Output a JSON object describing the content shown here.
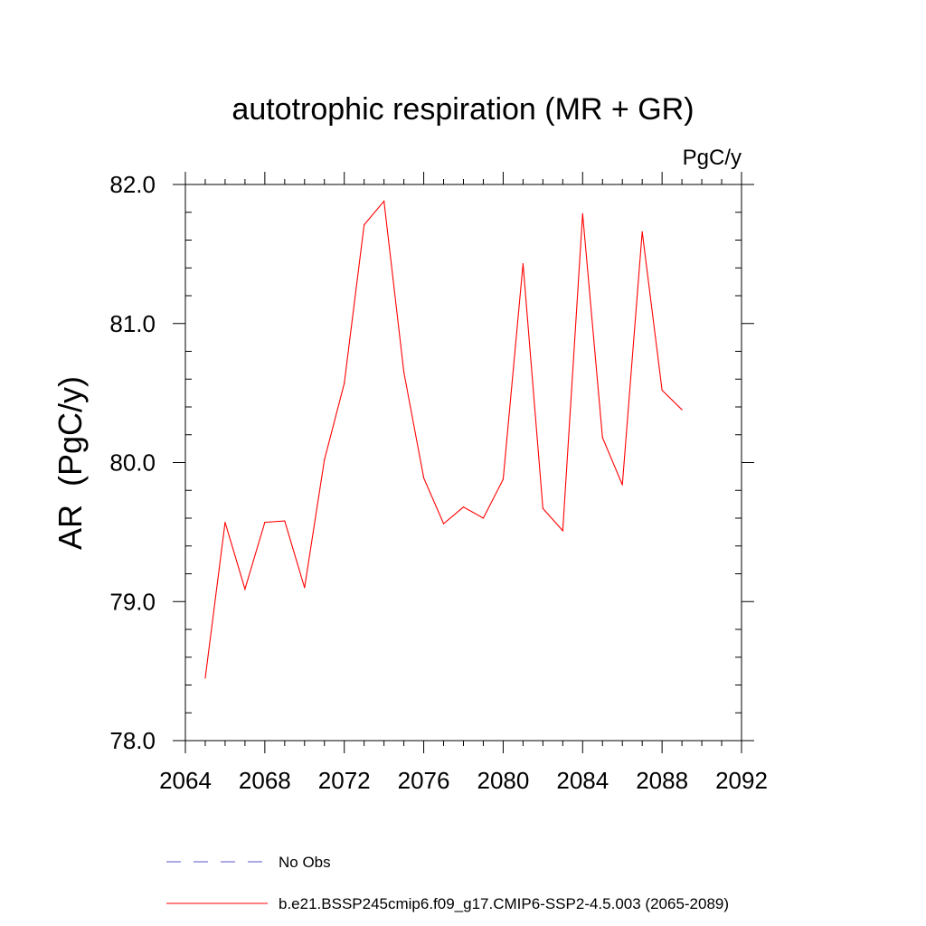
{
  "chart_data": {
    "type": "line",
    "title": "autotrophic respiration (MR + GR)",
    "units": "PgC/y",
    "ylabel": "AR  (PgC/y)",
    "xlabel": "",
    "xlim": [
      2064,
      2092
    ],
    "ylim": [
      78.0,
      82.0
    ],
    "x_ticks": [
      2064,
      2068,
      2072,
      2076,
      2080,
      2084,
      2088,
      2092
    ],
    "x_tick_labels": [
      "2064",
      "2068",
      "2072",
      "2076",
      "2080",
      "2084",
      "2088",
      "2092"
    ],
    "y_ticks": [
      78.0,
      79.0,
      80.0,
      81.0,
      82.0
    ],
    "y_tick_labels": [
      "78.0",
      "79.0",
      "80.0",
      "81.0",
      "82.0"
    ],
    "grid": false,
    "legend_position": "bottom",
    "series": [
      {
        "name": "b.e21.BSSP245cmip6.f09_g17.CMIP6-SSP2-4.5.003 (2065-2089)",
        "color": "#ff0000",
        "style": "solid",
        "x": [
          2065,
          2066,
          2067,
          2068,
          2069,
          2070,
          2071,
          2072,
          2073,
          2074,
          2075,
          2076,
          2077,
          2078,
          2079,
          2080,
          2081,
          2082,
          2083,
          2084,
          2085,
          2086,
          2087,
          2088,
          2089
        ],
        "y": [
          78.45,
          79.57,
          79.09,
          79.57,
          79.58,
          79.1,
          80.02,
          80.57,
          81.71,
          81.88,
          80.65,
          79.89,
          79.56,
          79.68,
          79.6,
          79.88,
          81.43,
          79.67,
          79.51,
          81.79,
          80.18,
          79.84,
          81.66,
          80.52,
          80.38
        ]
      },
      {
        "name": "No Obs",
        "color": "#5555cc",
        "style": "dashed",
        "x": [],
        "y": []
      }
    ],
    "legend": [
      {
        "label": "No Obs",
        "color": "#5555cc",
        "style": "dashed"
      },
      {
        "label": "b.e21.BSSP245cmip6.f09_g17.CMIP6-SSP2-4.5.003 (2065-2089)",
        "color": "#ff0000",
        "style": "solid"
      }
    ]
  }
}
